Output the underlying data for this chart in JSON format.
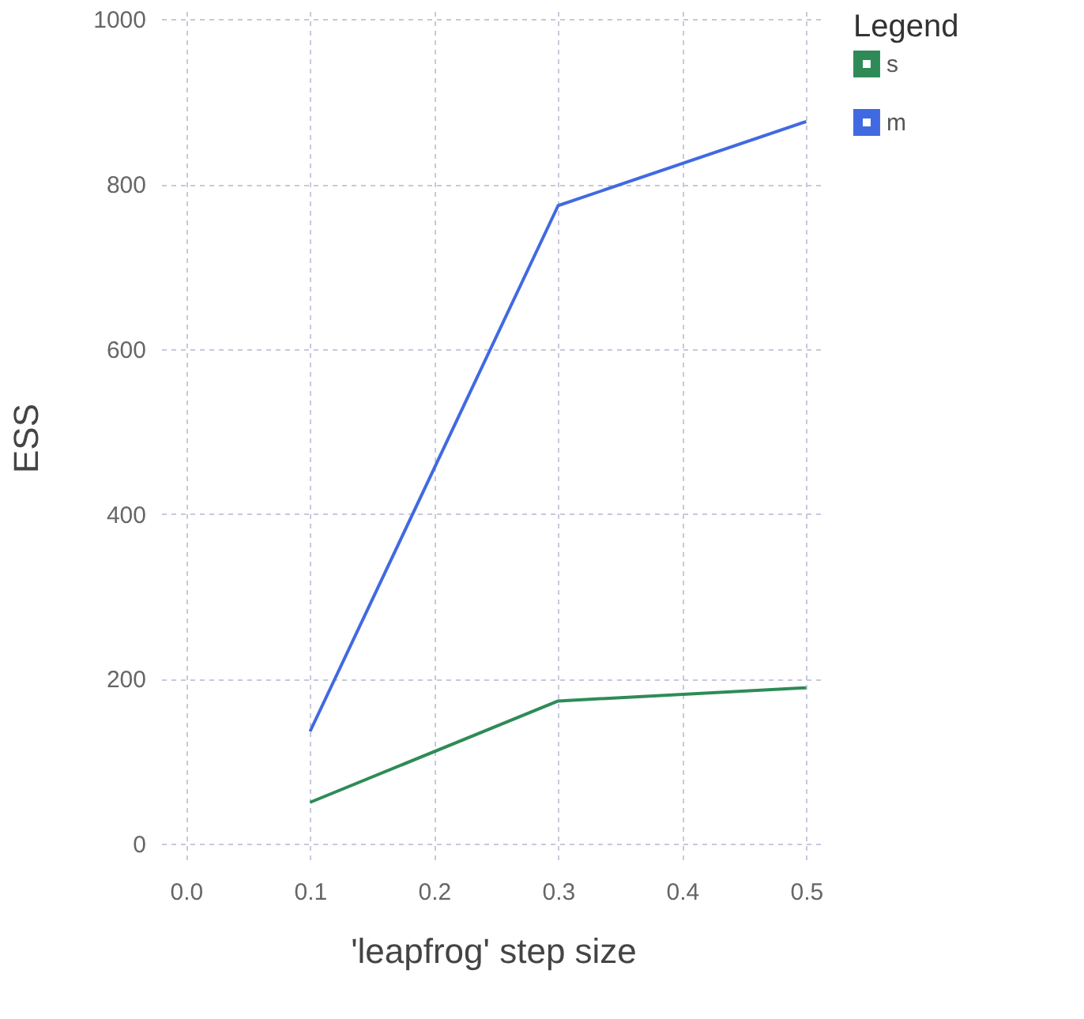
{
  "chart_data": {
    "type": "line",
    "xlabel": "'leapfrog' step size",
    "ylabel": "ESS",
    "legend_title": "Legend",
    "legend": "right",
    "x": [
      0.1,
      0.3,
      0.5
    ],
    "series": [
      {
        "name": "s",
        "color": "#2e8b57",
        "values": [
          50,
          173,
          189
        ]
      },
      {
        "name": "m",
        "color": "#4169e1",
        "values": [
          136,
          774,
          876
        ]
      }
    ],
    "xlim": [
      -0.02,
      0.515
    ],
    "xticks": [
      {
        "value": 0,
        "label": "0.0"
      },
      0.1,
      0.2,
      0.3,
      0.4,
      0.5
    ],
    "ylim": [
      -25,
      1010
    ],
    "yticks": [
      0,
      200,
      400,
      600,
      800,
      1000
    ],
    "grid": true,
    "marker": "none",
    "line_style": "solid"
  }
}
